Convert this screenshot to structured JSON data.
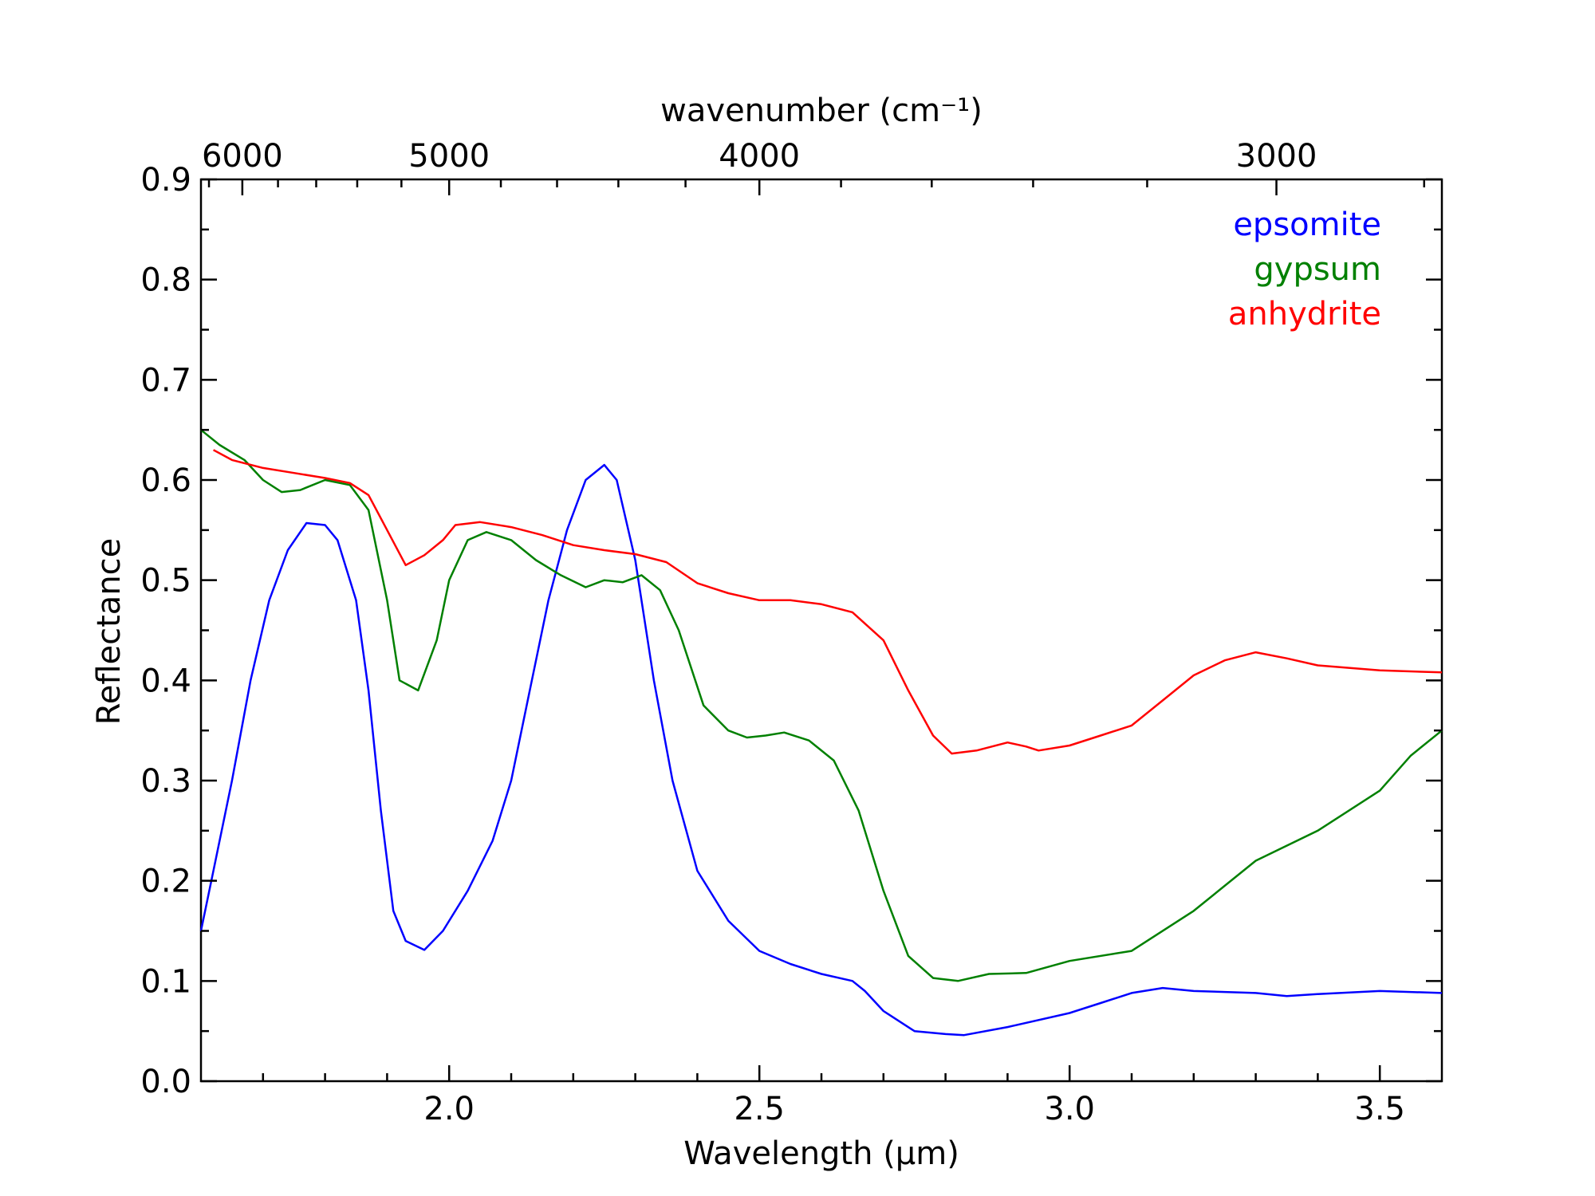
{
  "chart_data": {
    "type": "line",
    "xlabel": "Wavelength (μm)",
    "ylabel": "Reflectance",
    "top_axis_label": "wavenumber (cm⁻¹)",
    "xlim": [
      1.6,
      3.6
    ],
    "ylim": [
      0.0,
      0.9
    ],
    "x_ticks": [
      "2.0",
      "2.5",
      "3.0",
      "3.5"
    ],
    "y_ticks": [
      "0.0",
      "0.1",
      "0.2",
      "0.3",
      "0.4",
      "0.5",
      "0.6",
      "0.7",
      "0.8",
      "0.9"
    ],
    "top_ticks": [
      "6000",
      "5000",
      "4000",
      "3000"
    ],
    "top_tick_values": [
      6000,
      5000,
      4000,
      3000
    ],
    "legend_position": "top-right",
    "series": [
      {
        "name": "epsomite",
        "color": "#0000ff",
        "points": [
          [
            1.6,
            0.15
          ],
          [
            1.62,
            0.21
          ],
          [
            1.65,
            0.3
          ],
          [
            1.68,
            0.4
          ],
          [
            1.71,
            0.48
          ],
          [
            1.74,
            0.53
          ],
          [
            1.77,
            0.557
          ],
          [
            1.8,
            0.555
          ],
          [
            1.82,
            0.54
          ],
          [
            1.85,
            0.48
          ],
          [
            1.87,
            0.39
          ],
          [
            1.89,
            0.27
          ],
          [
            1.91,
            0.17
          ],
          [
            1.93,
            0.14
          ],
          [
            1.96,
            0.131
          ],
          [
            1.99,
            0.15
          ],
          [
            2.03,
            0.19
          ],
          [
            2.07,
            0.24
          ],
          [
            2.1,
            0.3
          ],
          [
            2.13,
            0.39
          ],
          [
            2.16,
            0.48
          ],
          [
            2.19,
            0.55
          ],
          [
            2.22,
            0.6
          ],
          [
            2.25,
            0.615
          ],
          [
            2.27,
            0.6
          ],
          [
            2.3,
            0.52
          ],
          [
            2.33,
            0.4
          ],
          [
            2.36,
            0.3
          ],
          [
            2.4,
            0.21
          ],
          [
            2.45,
            0.16
          ],
          [
            2.5,
            0.13
          ],
          [
            2.55,
            0.117
          ],
          [
            2.6,
            0.107
          ],
          [
            2.65,
            0.1
          ],
          [
            2.67,
            0.09
          ],
          [
            2.7,
            0.07
          ],
          [
            2.75,
            0.05
          ],
          [
            2.8,
            0.047
          ],
          [
            2.83,
            0.046
          ],
          [
            2.9,
            0.054
          ],
          [
            3.0,
            0.068
          ],
          [
            3.05,
            0.078
          ],
          [
            3.1,
            0.088
          ],
          [
            3.15,
            0.093
          ],
          [
            3.2,
            0.09
          ],
          [
            3.3,
            0.088
          ],
          [
            3.35,
            0.085
          ],
          [
            3.4,
            0.087
          ],
          [
            3.5,
            0.09
          ],
          [
            3.6,
            0.088
          ]
        ]
      },
      {
        "name": "gypsum",
        "color": "#008000",
        "points": [
          [
            1.6,
            0.65
          ],
          [
            1.63,
            0.635
          ],
          [
            1.67,
            0.62
          ],
          [
            1.7,
            0.6
          ],
          [
            1.73,
            0.588
          ],
          [
            1.76,
            0.59
          ],
          [
            1.8,
            0.6
          ],
          [
            1.84,
            0.595
          ],
          [
            1.87,
            0.57
          ],
          [
            1.9,
            0.48
          ],
          [
            1.92,
            0.4
          ],
          [
            1.95,
            0.39
          ],
          [
            1.98,
            0.44
          ],
          [
            2.0,
            0.5
          ],
          [
            2.03,
            0.54
          ],
          [
            2.06,
            0.548
          ],
          [
            2.1,
            0.54
          ],
          [
            2.14,
            0.52
          ],
          [
            2.18,
            0.505
          ],
          [
            2.22,
            0.493
          ],
          [
            2.25,
            0.5
          ],
          [
            2.28,
            0.498
          ],
          [
            2.31,
            0.505
          ],
          [
            2.34,
            0.49
          ],
          [
            2.37,
            0.45
          ],
          [
            2.41,
            0.375
          ],
          [
            2.45,
            0.35
          ],
          [
            2.48,
            0.343
          ],
          [
            2.51,
            0.345
          ],
          [
            2.54,
            0.348
          ],
          [
            2.58,
            0.34
          ],
          [
            2.62,
            0.32
          ],
          [
            2.66,
            0.27
          ],
          [
            2.7,
            0.19
          ],
          [
            2.74,
            0.125
          ],
          [
            2.78,
            0.103
          ],
          [
            2.82,
            0.1
          ],
          [
            2.87,
            0.107
          ],
          [
            2.93,
            0.108
          ],
          [
            3.0,
            0.12
          ],
          [
            3.1,
            0.13
          ],
          [
            3.2,
            0.17
          ],
          [
            3.3,
            0.22
          ],
          [
            3.4,
            0.25
          ],
          [
            3.5,
            0.29
          ],
          [
            3.55,
            0.325
          ],
          [
            3.6,
            0.35
          ]
        ]
      },
      {
        "name": "anhydrite",
        "color": "#ff0000",
        "points": [
          [
            1.62,
            0.63
          ],
          [
            1.65,
            0.62
          ],
          [
            1.7,
            0.612
          ],
          [
            1.75,
            0.607
          ],
          [
            1.8,
            0.602
          ],
          [
            1.84,
            0.597
          ],
          [
            1.87,
            0.585
          ],
          [
            1.9,
            0.55
          ],
          [
            1.93,
            0.515
          ],
          [
            1.96,
            0.525
          ],
          [
            1.99,
            0.54
          ],
          [
            2.01,
            0.555
          ],
          [
            2.05,
            0.558
          ],
          [
            2.1,
            0.553
          ],
          [
            2.15,
            0.545
          ],
          [
            2.2,
            0.535
          ],
          [
            2.25,
            0.53
          ],
          [
            2.3,
            0.526
          ],
          [
            2.35,
            0.518
          ],
          [
            2.4,
            0.497
          ],
          [
            2.45,
            0.487
          ],
          [
            2.5,
            0.48
          ],
          [
            2.55,
            0.48
          ],
          [
            2.6,
            0.476
          ],
          [
            2.65,
            0.468
          ],
          [
            2.7,
            0.44
          ],
          [
            2.74,
            0.39
          ],
          [
            2.78,
            0.345
          ],
          [
            2.81,
            0.327
          ],
          [
            2.85,
            0.33
          ],
          [
            2.9,
            0.338
          ],
          [
            2.93,
            0.334
          ],
          [
            2.95,
            0.33
          ],
          [
            3.0,
            0.335
          ],
          [
            3.05,
            0.345
          ],
          [
            3.1,
            0.355
          ],
          [
            3.15,
            0.38
          ],
          [
            3.2,
            0.405
          ],
          [
            3.25,
            0.42
          ],
          [
            3.3,
            0.428
          ],
          [
            3.35,
            0.422
          ],
          [
            3.4,
            0.415
          ],
          [
            3.5,
            0.41
          ],
          [
            3.6,
            0.408
          ]
        ]
      }
    ]
  }
}
